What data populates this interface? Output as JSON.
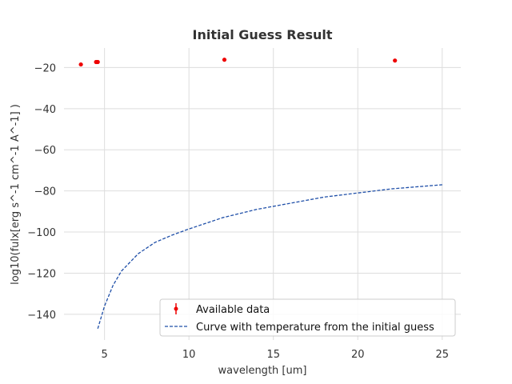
{
  "chart_data": {
    "type": "scatter",
    "title": "Initial Guess Result",
    "xlabel": "wavelength [um]",
    "ylabel": "log10(fulx[erg s^-1 cm^-1 A^-1] )",
    "xlim": [
      2.6,
      26.1
    ],
    "ylim": [
      -152.5,
      -10.5
    ],
    "xticks": [
      5,
      10,
      15,
      20,
      25
    ],
    "yticks": [
      -140,
      -120,
      -100,
      -80,
      -60,
      -40,
      -20
    ],
    "grid": true,
    "legend_position": "lower-center",
    "series": [
      {
        "name": "Available data",
        "kind": "scatter-errorbar",
        "color": "#ee0000",
        "points": [
          {
            "x": 3.6,
            "y": -18.5
          },
          {
            "x": 4.5,
            "y": -17.3
          },
          {
            "x": 4.6,
            "y": -17.3
          },
          {
            "x": 12.1,
            "y": -16.2
          },
          {
            "x": 22.2,
            "y": -16.6
          }
        ]
      },
      {
        "name": "Curve with temperature from the initial guess",
        "kind": "line-dashed",
        "color": "#1f4fa8",
        "points": [
          {
            "x": 4.6,
            "y": -147.0
          },
          {
            "x": 5.0,
            "y": -136.0
          },
          {
            "x": 5.5,
            "y": -126.0
          },
          {
            "x": 6.0,
            "y": -119.0
          },
          {
            "x": 7.0,
            "y": -110.5
          },
          {
            "x": 8.0,
            "y": -105.0
          },
          {
            "x": 9.0,
            "y": -101.5
          },
          {
            "x": 10.0,
            "y": -98.5
          },
          {
            "x": 12.0,
            "y": -93.0
          },
          {
            "x": 14.0,
            "y": -89.0
          },
          {
            "x": 16.0,
            "y": -86.0
          },
          {
            "x": 18.0,
            "y": -83.0
          },
          {
            "x": 20.0,
            "y": -81.0
          },
          {
            "x": 22.0,
            "y": -79.0
          },
          {
            "x": 25.0,
            "y": -77.0
          }
        ]
      }
    ]
  }
}
